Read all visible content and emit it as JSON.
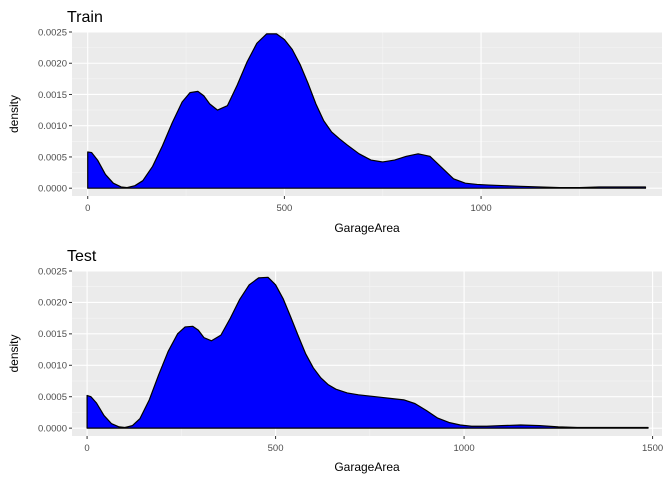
{
  "chart_data": [
    {
      "type": "area",
      "title": "Train",
      "xlabel": "GarageArea",
      "ylabel": "density",
      "xlim": [
        -40,
        1460
      ],
      "ylim": [
        -0.000125,
        0.0025
      ],
      "xticks": [
        0,
        500,
        1000
      ],
      "xtick_labels": [
        "0",
        "500",
        "1000"
      ],
      "yticks": [
        0,
        0.0005,
        0.001,
        0.0015,
        0.002,
        0.0025
      ],
      "ytick_labels": [
        "0.0000",
        "0.0005",
        "0.0010",
        "0.0015",
        "0.0020",
        "0.0025"
      ],
      "grid": true,
      "fill": "#0000ff",
      "x": [
        0,
        10,
        25,
        45,
        65,
        85,
        100,
        120,
        140,
        165,
        190,
        215,
        240,
        260,
        280,
        295,
        310,
        330,
        355,
        380,
        405,
        430,
        455,
        480,
        500,
        520,
        540,
        560,
        580,
        600,
        620,
        640,
        660,
        690,
        720,
        750,
        780,
        810,
        840,
        870,
        900,
        930,
        960,
        990,
        1020,
        1060,
        1100,
        1150,
        1200,
        1250,
        1300,
        1350,
        1400,
        1418
      ],
      "y": [
        0.00058,
        0.00057,
        0.00045,
        0.00022,
        8e-05,
        2e-05,
        1e-05,
        4e-05,
        0.00012,
        0.00035,
        0.00068,
        0.00105,
        0.00138,
        0.00153,
        0.00155,
        0.00148,
        0.00135,
        0.00125,
        0.00132,
        0.00165,
        0.00202,
        0.00232,
        0.00247,
        0.00247,
        0.00238,
        0.00222,
        0.00198,
        0.00168,
        0.00135,
        0.00108,
        0.0009,
        0.00079,
        0.00069,
        0.00055,
        0.00045,
        0.00042,
        0.00045,
        0.00051,
        0.00055,
        0.00051,
        0.00033,
        0.00015,
        8e-05,
        6e-05,
        5e-05,
        4e-05,
        3e-05,
        2e-05,
        1e-05,
        1e-05,
        2e-05,
        2e-05,
        2e-05,
        2e-05
      ]
    },
    {
      "type": "area",
      "title": "Test",
      "xlabel": "GarageArea",
      "ylabel": "density",
      "xlim": [
        -40,
        1525
      ],
      "ylim": [
        -0.000125,
        0.0025
      ],
      "xticks": [
        0,
        500,
        1000,
        1500
      ],
      "xtick_labels": [
        "0",
        "500",
        "1000",
        "1500"
      ],
      "yticks": [
        0,
        0.0005,
        0.001,
        0.0015,
        0.002,
        0.0025
      ],
      "ytick_labels": [
        "0.0000",
        "0.0005",
        "0.0010",
        "0.0015",
        "0.0020",
        "0.0025"
      ],
      "grid": true,
      "fill": "#0000ff",
      "x": [
        0,
        10,
        25,
        45,
        65,
        85,
        100,
        120,
        140,
        165,
        190,
        215,
        240,
        260,
        280,
        295,
        310,
        330,
        355,
        380,
        405,
        430,
        455,
        480,
        500,
        520,
        540,
        560,
        580,
        600,
        620,
        640,
        660,
        690,
        720,
        750,
        780,
        810,
        840,
        870,
        900,
        930,
        960,
        990,
        1020,
        1060,
        1100,
        1150,
        1200,
        1250,
        1300,
        1350,
        1400,
        1450,
        1488
      ],
      "y": [
        0.00052,
        0.0005,
        0.0004,
        0.0002,
        7e-05,
        2e-05,
        1e-05,
        4e-05,
        0.00015,
        0.00045,
        0.00085,
        0.00122,
        0.0015,
        0.00161,
        0.00162,
        0.00156,
        0.00144,
        0.00139,
        0.00148,
        0.00175,
        0.00205,
        0.00228,
        0.00239,
        0.0024,
        0.00228,
        0.00206,
        0.00177,
        0.00147,
        0.00118,
        0.00096,
        0.0008,
        0.00069,
        0.00062,
        0.00056,
        0.00053,
        0.00051,
        0.00049,
        0.00047,
        0.00045,
        0.00039,
        0.00028,
        0.00016,
        9e-05,
        5e-05,
        3e-05,
        3e-05,
        4e-05,
        5e-05,
        4e-05,
        2e-05,
        1e-05,
        1e-05,
        1e-05,
        1e-05,
        1e-05
      ]
    }
  ]
}
